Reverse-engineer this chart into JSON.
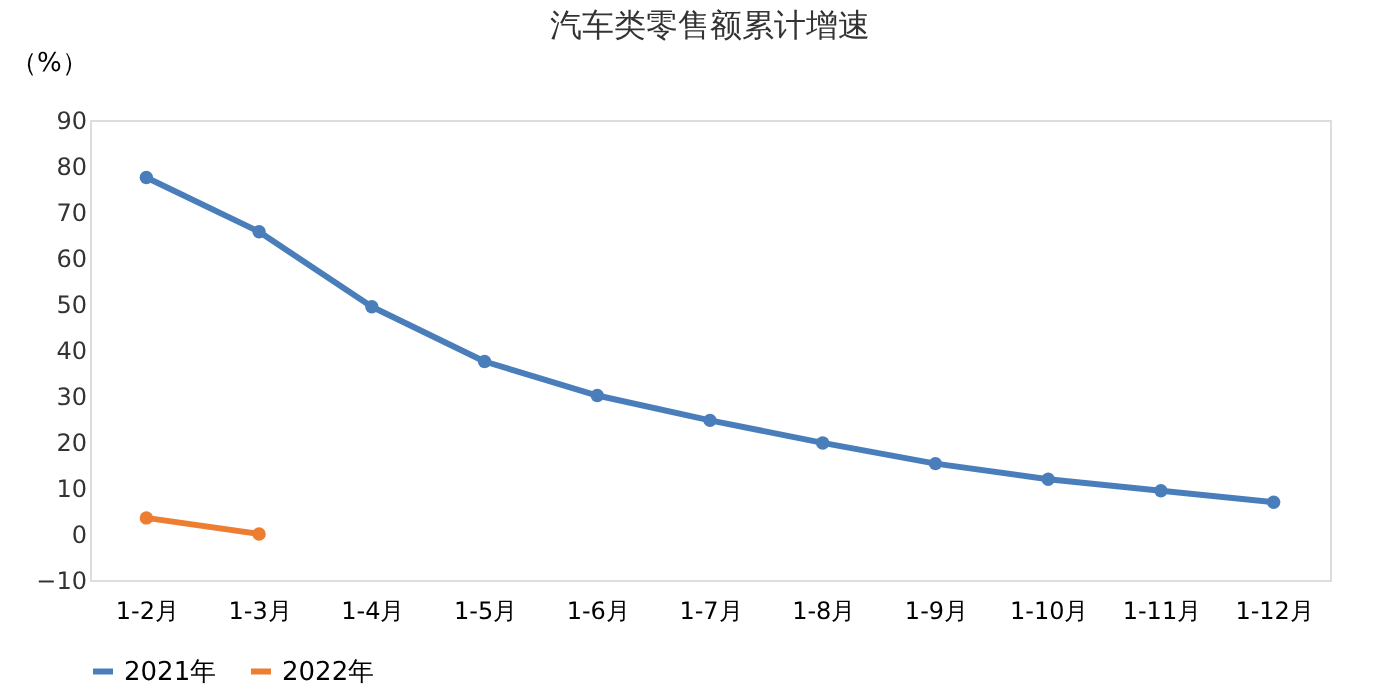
{
  "chart_data": {
    "type": "line",
    "title": "汽车类零售额累计增速",
    "ylabel": "（%）",
    "categories": [
      "1-2月",
      "1-3月",
      "1-4月",
      "1-5月",
      "1-6月",
      "1-7月",
      "1-8月",
      "1-9月",
      "1-10月",
      "1-11月",
      "1-12月"
    ],
    "series": [
      {
        "name": "2021年",
        "color": "#4a7ebb",
        "values": [
          77.5,
          65.7,
          49.4,
          37.5,
          30.1,
          24.7,
          19.8,
          15.3,
          11.9,
          9.4,
          6.9
        ]
      },
      {
        "name": "2022年",
        "color": "#ed7d31",
        "values": [
          3.5,
          0,
          null,
          null,
          null,
          null,
          null,
          null,
          null,
          null,
          null
        ]
      }
    ],
    "ylim": [
      -10,
      90
    ],
    "yticks": [
      -10,
      0,
      10,
      20,
      30,
      40,
      50,
      60,
      70,
      80,
      90
    ],
    "grid": false,
    "legend": "bottom",
    "marker": "circle",
    "line_style": "solid"
  }
}
